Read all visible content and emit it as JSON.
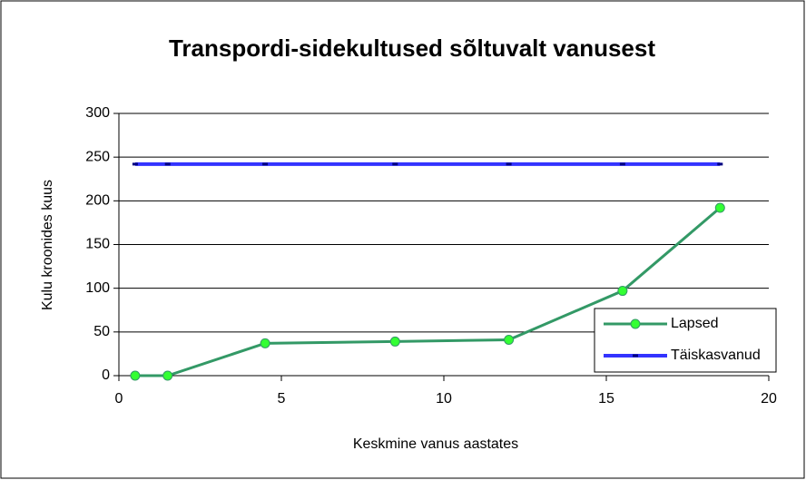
{
  "chart_data": {
    "type": "line",
    "title": "Transpordi-sidekultused sõltuvalt vanusest",
    "x_label": "Keskmine vanus aastates",
    "y_label": "Kulu kroonides kuus",
    "xlim": [
      0,
      20
    ],
    "xticks": [
      0,
      5,
      10,
      15,
      20
    ],
    "ylim": [
      0,
      300
    ],
    "yticks": [
      0,
      50,
      100,
      150,
      200,
      250,
      300
    ],
    "grid": true,
    "legend_position": "lower right",
    "series": [
      {
        "name": "Lapsed",
        "color": "#339966",
        "marker_color": "#33ff33",
        "x": [
          0.5,
          1.5,
          4.5,
          8.5,
          12,
          15.5,
          18.5
        ],
        "values": [
          0,
          0,
          37,
          39,
          41,
          97,
          192
        ]
      },
      {
        "name": "Täiskasvanud",
        "color": "#3333ff",
        "marker_color": "#000080",
        "x": [
          0.5,
          1.5,
          4.5,
          8.5,
          12,
          15.5,
          18.5
        ],
        "values": [
          242,
          242,
          242,
          242,
          242,
          242,
          242
        ]
      }
    ]
  }
}
